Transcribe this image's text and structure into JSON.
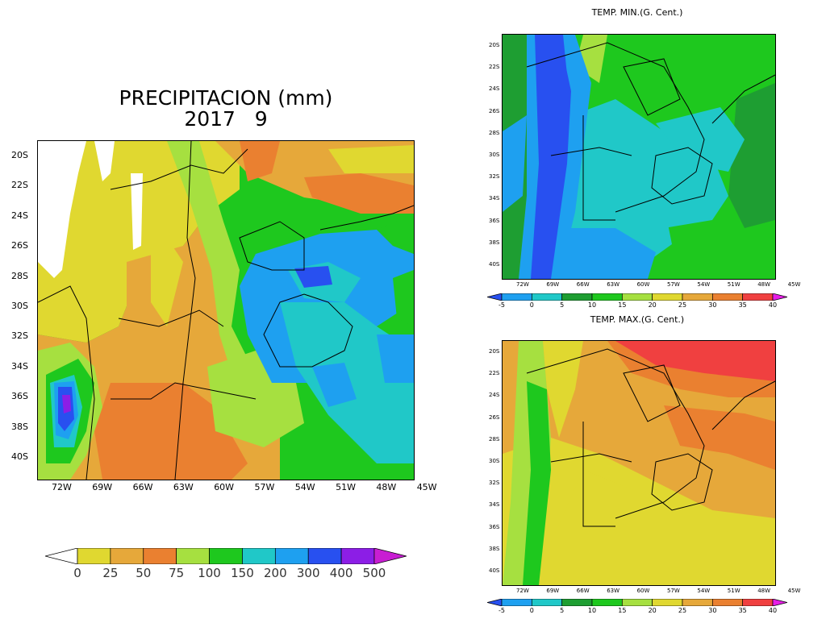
{
  "precip": {
    "title": "PRECIPITACION (mm)",
    "subtitle": "2017   9",
    "lat_ticks": [
      "20S",
      "22S",
      "24S",
      "26S",
      "28S",
      "30S",
      "32S",
      "34S",
      "36S",
      "38S",
      "40S"
    ],
    "lon_ticks": [
      "72W",
      "69W",
      "66W",
      "63W",
      "60W",
      "57W",
      "54W",
      "51W",
      "48W",
      "45W"
    ],
    "colorbar_labels": [
      "0",
      "25",
      "50",
      "75",
      "100",
      "150",
      "200",
      "300",
      "400",
      "500"
    ],
    "colorbar_colors": [
      "#ffffff",
      "#e0d830",
      "#e6a83a",
      "#ea8030",
      "#a6e040",
      "#1ec81e",
      "#20c8c8",
      "#1ea0f0",
      "#2850f0",
      "#8c1ee6",
      "#c81ed2"
    ]
  },
  "tmin": {
    "title": "TEMP. MIN.(G. Cent.)",
    "lat_ticks": [
      "20S",
      "22S",
      "24S",
      "26S",
      "28S",
      "30S",
      "32S",
      "34S",
      "36S",
      "38S",
      "40S"
    ],
    "lon_ticks": [
      "72W",
      "69W",
      "66W",
      "63W",
      "60W",
      "57W",
      "54W",
      "51W",
      "48W",
      "45W"
    ],
    "colorbar_labels": [
      "-5",
      "0",
      "5",
      "10",
      "15",
      "20",
      "25",
      "30",
      "35",
      "40"
    ],
    "colorbar_colors": [
      "#2850f0",
      "#1ea0f0",
      "#20c8c8",
      "#1e9e32",
      "#1ec81e",
      "#a6e040",
      "#e0d830",
      "#e6a83a",
      "#ea8030",
      "#f04040",
      "#e61ee6"
    ]
  },
  "tmax": {
    "title": "TEMP. MAX.(G. Cent.)",
    "lat_ticks": [
      "20S",
      "22S",
      "24S",
      "26S",
      "28S",
      "30S",
      "32S",
      "34S",
      "36S",
      "38S",
      "40S"
    ],
    "lon_ticks": [
      "72W",
      "69W",
      "66W",
      "63W",
      "60W",
      "57W",
      "54W",
      "51W",
      "48W",
      "45W"
    ],
    "colorbar_labels": [
      "-5",
      "0",
      "5",
      "10",
      "15",
      "20",
      "25",
      "30",
      "35",
      "40"
    ],
    "colorbar_colors": [
      "#2850f0",
      "#1ea0f0",
      "#20c8c8",
      "#1e9e32",
      "#1ec81e",
      "#a6e040",
      "#e0d830",
      "#e6a83a",
      "#ea8030",
      "#f04040",
      "#e61ee6"
    ]
  }
}
